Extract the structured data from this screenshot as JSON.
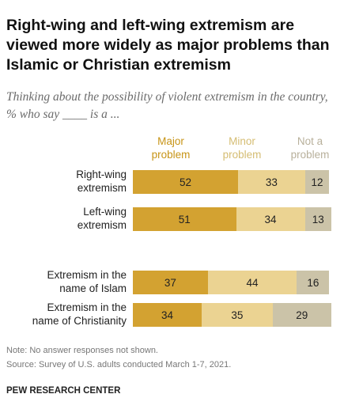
{
  "title": "Right-wing and left-wing extremism are viewed more widely as major problems than Islamic or Christian extremism",
  "subtitle": "Thinking about the possibility of violent extremism in the country, % who say ____ is a ...",
  "note": "Note: No answer responses not shown.",
  "source": "Source: Survey of U.S. adults conducted March 1-7, 2021.",
  "brand": "PEW RESEARCH CENTER",
  "colors": {
    "major": "#d3a231",
    "minor": "#ebd392",
    "not": "#cbc3a8"
  },
  "chart_data": {
    "type": "bar",
    "orientation": "horizontal",
    "stacked": true,
    "title": "Right-wing and left-wing extremism are viewed more widely as major problems than Islamic or Christian extremism",
    "categories": [
      "Right-wing extremism",
      "Left-wing extremism",
      "Extremism in the name of Islam",
      "Extremism in the name of Christianity"
    ],
    "category_lines": [
      [
        "Right-wing",
        "extremism"
      ],
      [
        "Left-wing",
        "extremism"
      ],
      [
        "Extremism in the",
        "name of Islam"
      ],
      [
        "Extremism in the",
        "name of Christianity"
      ]
    ],
    "series": [
      {
        "name": "Major problem",
        "header_lines": [
          "Major",
          "problem"
        ],
        "values": [
          52,
          51,
          37,
          34
        ]
      },
      {
        "name": "Minor problem",
        "header_lines": [
          "Minor",
          "problem"
        ],
        "values": [
          33,
          34,
          44,
          35
        ]
      },
      {
        "name": "Not a problem",
        "header_lines": [
          "Not a",
          "problem"
        ],
        "values": [
          12,
          13,
          16,
          29
        ]
      }
    ],
    "unit": "%",
    "grid": false,
    "legend": "top"
  }
}
